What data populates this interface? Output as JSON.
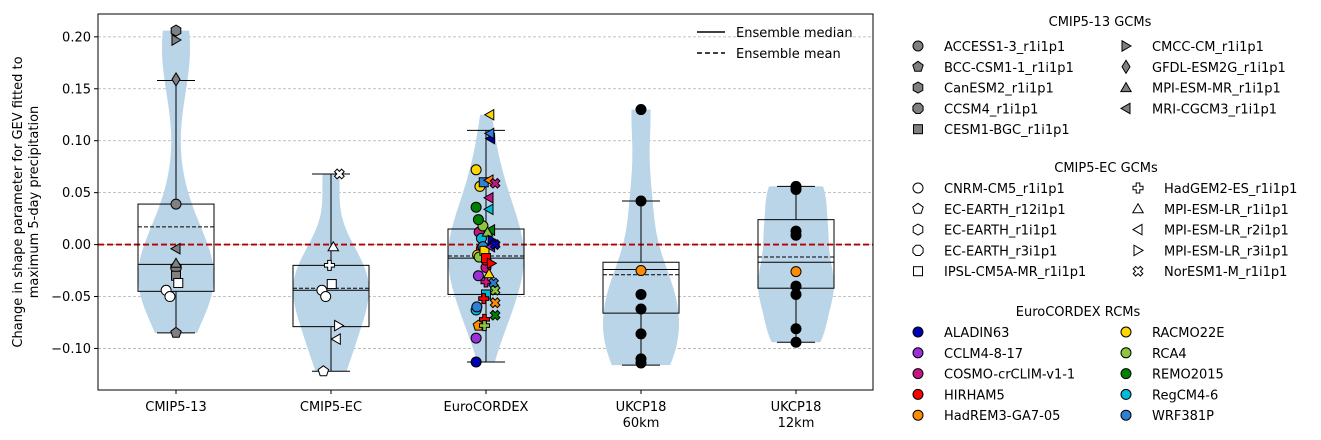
{
  "chart_data": {
    "type": "violin",
    "ylabel_line1": "Change in shape parameter for GEV fitted to",
    "ylabel_line2": "maximum 5-day precipitation",
    "ylim": [
      -0.14,
      0.222
    ],
    "yticks": [
      -0.1,
      -0.05,
      0.0,
      0.05,
      0.1,
      0.15,
      0.2
    ],
    "ytick_labels": [
      "−0.10",
      "−0.05",
      "0.00",
      "0.05",
      "0.10",
      "0.15",
      "0.20"
    ],
    "grid": "y",
    "zero_line_color": "#b30000",
    "violin_color": "#bad4e8",
    "categories": [
      {
        "label": "CMIP5-13",
        "label2": "",
        "box": {
          "q1": -0.045,
          "median": -0.019,
          "mean": 0.017,
          "q3": 0.039,
          "whisker_low": -0.085,
          "whisker_high": 0.158
        }
      },
      {
        "label": "CMIP5-EC",
        "label2": "",
        "box": {
          "q1": -0.079,
          "median": -0.044,
          "mean": -0.042,
          "q3": -0.02,
          "whisker_low": -0.122,
          "whisker_high": 0.068
        }
      },
      {
        "label": "EuroCORDEX",
        "label2": "",
        "box": {
          "q1": -0.048,
          "median": -0.013,
          "mean": -0.011,
          "q3": 0.015,
          "whisker_low": -0.113,
          "whisker_high": 0.11
        }
      },
      {
        "label": "UKCP18",
        "label2": "60km",
        "box": {
          "q1": -0.066,
          "median": -0.024,
          "mean": -0.029,
          "q3": -0.017,
          "whisker_low": -0.116,
          "whisker_high": 0.042
        }
      },
      {
        "label": "UKCP18",
        "label2": "12km",
        "box": {
          "q1": -0.042,
          "median": -0.017,
          "mean": -0.012,
          "q3": 0.024,
          "whisker_low": -0.094,
          "whisker_high": 0.056
        }
      }
    ],
    "series": [
      {
        "group": 0,
        "marker": "circle",
        "fill": "#808080",
        "points": [
          [
            0,
            0.039
          ]
        ]
      },
      {
        "group": 0,
        "marker": "pentagon",
        "fill": "#808080",
        "points": [
          [
            0,
            -0.085
          ]
        ]
      },
      {
        "group": 0,
        "marker": "hexagon",
        "fill": "#808080",
        "points": [
          [
            0,
            0.206
          ]
        ]
      },
      {
        "group": 0,
        "marker": "octagon",
        "fill": "#808080",
        "points": [
          [
            0,
            -0.022
          ]
        ]
      },
      {
        "group": 0,
        "marker": "square",
        "fill": "#808080",
        "points": [
          [
            0,
            -0.03
          ]
        ]
      },
      {
        "group": 0,
        "marker": "tri-right",
        "fill": "#808080",
        "points": [
          [
            0,
            0.197
          ]
        ]
      },
      {
        "group": 0,
        "marker": "diamond",
        "fill": "#808080",
        "points": [
          [
            0,
            0.159
          ]
        ]
      },
      {
        "group": 0,
        "marker": "tri-up",
        "fill": "#808080",
        "points": [
          [
            0,
            -0.018
          ]
        ]
      },
      {
        "group": 0,
        "marker": "tri-left",
        "fill": "#808080",
        "points": [
          [
            0,
            -0.004
          ]
        ]
      },
      {
        "group": 0,
        "marker": "circle",
        "fill": "#ffffff",
        "points": [
          [
            -0.13,
            -0.044
          ],
          [
            -0.08,
            -0.05
          ]
        ]
      },
      {
        "group": 0,
        "marker": "square",
        "fill": "#ffffff",
        "points": [
          [
            0.03,
            -0.037
          ]
        ]
      },
      {
        "group": 1,
        "marker": "circle",
        "fill": "#ffffff",
        "points": [
          [
            -0.12,
            -0.044
          ],
          [
            -0.07,
            -0.05
          ]
        ]
      },
      {
        "group": 1,
        "marker": "pentagon",
        "fill": "#ffffff",
        "points": [
          [
            -0.1,
            -0.122
          ]
        ]
      },
      {
        "group": 1,
        "marker": "plus",
        "fill": "#ffffff",
        "points": [
          [
            -0.02,
            -0.02
          ]
        ]
      },
      {
        "group": 1,
        "marker": "tri-up",
        "fill": "#ffffff",
        "points": [
          [
            0.03,
            -0.002
          ]
        ]
      },
      {
        "group": 1,
        "marker": "square",
        "fill": "#ffffff",
        "points": [
          [
            0.01,
            -0.038
          ]
        ]
      },
      {
        "group": 1,
        "marker": "tri-left",
        "fill": "#ffffff",
        "points": [
          [
            0.07,
            -0.091
          ]
        ]
      },
      {
        "group": 1,
        "marker": "tri-right",
        "fill": "#ffffff",
        "points": [
          [
            0.1,
            -0.078
          ]
        ]
      },
      {
        "group": 1,
        "marker": "x-filled",
        "fill": "#ffffff",
        "points": [
          [
            0.11,
            0.068
          ]
        ]
      },
      {
        "group": 2,
        "marker": "circle",
        "fill": "#0000b3",
        "points": [
          [
            -0.13,
            -0.113
          ]
        ]
      },
      {
        "group": 2,
        "marker": "circle",
        "fill": "#9b30d9",
        "points": [
          [
            -0.13,
            -0.09
          ],
          [
            -0.1,
            -0.03
          ]
        ]
      },
      {
        "group": 2,
        "marker": "circle",
        "fill": "#c71585",
        "points": [
          [
            -0.09,
            0.012
          ],
          [
            0.0,
            -0.022
          ]
        ]
      },
      {
        "group": 2,
        "marker": "circle",
        "fill": "#ff0000",
        "points": [
          [
            -0.06,
            -0.004
          ],
          [
            0.0,
            -0.015
          ]
        ]
      },
      {
        "group": 2,
        "marker": "pentagon",
        "fill": "#ff8c00",
        "points": [
          [
            -0.1,
            -0.078
          ]
        ]
      },
      {
        "group": 2,
        "marker": "circle",
        "fill": "#ffd700",
        "points": [
          [
            -0.13,
            0.072
          ],
          [
            -0.08,
            0.056
          ],
          [
            -0.11,
            -0.01
          ]
        ]
      },
      {
        "group": 2,
        "marker": "circle",
        "fill": "#8cc63f",
        "points": [
          [
            -0.09,
            -0.012
          ],
          [
            -0.04,
            0.018
          ]
        ]
      },
      {
        "group": 2,
        "marker": "circle",
        "fill": "#008000",
        "points": [
          [
            -0.13,
            0.036
          ],
          [
            -0.1,
            0.024
          ]
        ]
      },
      {
        "group": 2,
        "marker": "circle",
        "fill": "#00bcd4",
        "points": [
          [
            -0.13,
            -0.063
          ],
          [
            -0.06,
            0.006
          ]
        ]
      },
      {
        "group": 2,
        "marker": "circle",
        "fill": "#2f7fd6",
        "points": [
          [
            -0.12,
            -0.06
          ],
          [
            -0.04,
            -0.002
          ]
        ]
      },
      {
        "group": 2,
        "marker": "square",
        "fill": "#ffd700",
        "points": [
          [
            -0.02,
            -0.006
          ]
        ]
      },
      {
        "group": 2,
        "marker": "square",
        "fill": "#ff0000",
        "points": [
          [
            0.0,
            -0.013
          ]
        ]
      },
      {
        "group": 2,
        "marker": "square",
        "fill": "#2f7fd6",
        "points": [
          [
            -0.03,
            0.06
          ]
        ]
      },
      {
        "group": 2,
        "marker": "square",
        "fill": "#00bcd4",
        "points": [
          [
            0.0,
            -0.048
          ]
        ]
      },
      {
        "group": 2,
        "marker": "plus",
        "fill": "#ff0000",
        "points": [
          [
            -0.03,
            -0.052
          ],
          [
            -0.02,
            -0.072
          ]
        ]
      },
      {
        "group": 2,
        "marker": "plus",
        "fill": "#8cc63f",
        "points": [
          [
            -0.02,
            -0.078
          ]
        ]
      },
      {
        "group": 2,
        "marker": "plus",
        "fill": "#c71585",
        "points": [
          [
            0.0,
            -0.036
          ]
        ]
      },
      {
        "group": 2,
        "marker": "tri-left",
        "fill": "#ffd700",
        "points": [
          [
            0.05,
            0.125
          ]
        ]
      },
      {
        "group": 2,
        "marker": "tri-left",
        "fill": "#0000b3",
        "points": [
          [
            0.06,
            0.102
          ]
        ]
      },
      {
        "group": 2,
        "marker": "tri-left",
        "fill": "#2f7fd6",
        "points": [
          [
            0.05,
            0.107
          ]
        ]
      },
      {
        "group": 2,
        "marker": "tri-left",
        "fill": "#ff8c00",
        "points": [
          [
            0.04,
            0.062
          ]
        ]
      },
      {
        "group": 2,
        "marker": "tri-left",
        "fill": "#c71585",
        "points": [
          [
            0.04,
            0.045
          ]
        ]
      },
      {
        "group": 2,
        "marker": "tri-left",
        "fill": "#00bcd4",
        "points": [
          [
            0.04,
            0.034
          ]
        ]
      },
      {
        "group": 2,
        "marker": "tri-left",
        "fill": "#9b30d9",
        "points": [
          [
            0.06,
            -0.002
          ]
        ]
      },
      {
        "group": 2,
        "marker": "tri-left",
        "fill": "#008000",
        "points": [
          [
            0.06,
            0.014
          ]
        ]
      },
      {
        "group": 2,
        "marker": "tri-up",
        "fill": "#ffd700",
        "points": [
          [
            0.04,
            -0.028
          ]
        ]
      },
      {
        "group": 2,
        "marker": "tri-up",
        "fill": "#8cc63f",
        "points": [
          [
            0.02,
            0.012
          ]
        ]
      },
      {
        "group": 2,
        "marker": "tri-right",
        "fill": "#0000b3",
        "points": [
          [
            0.08,
            0.004
          ]
        ]
      },
      {
        "group": 2,
        "marker": "tri-right",
        "fill": "#ff0000",
        "points": [
          [
            0.07,
            -0.018
          ]
        ]
      },
      {
        "group": 2,
        "marker": "x-filled",
        "fill": "#c71585",
        "points": [
          [
            0.12,
            0.059
          ]
        ]
      },
      {
        "group": 2,
        "marker": "x-filled",
        "fill": "#0000b3",
        "points": [
          [
            0.12,
            0.0
          ]
        ]
      },
      {
        "group": 2,
        "marker": "x-filled",
        "fill": "#2f7fd6",
        "points": [
          [
            0.1,
            -0.037
          ]
        ]
      },
      {
        "group": 2,
        "marker": "x-filled",
        "fill": "#8cc63f",
        "points": [
          [
            0.12,
            -0.044
          ]
        ]
      },
      {
        "group": 2,
        "marker": "x-filled",
        "fill": "#ff8c00",
        "points": [
          [
            0.12,
            -0.056
          ]
        ]
      },
      {
        "group": 2,
        "marker": "x-filled",
        "fill": "#008000",
        "points": [
          [
            0.12,
            -0.068
          ]
        ]
      },
      {
        "group": 3,
        "marker": "circle",
        "fill": "#000000",
        "points": [
          [
            0,
            0.13
          ],
          [
            0,
            0.042
          ],
          [
            0,
            -0.048
          ],
          [
            0,
            -0.062
          ],
          [
            0,
            -0.086
          ],
          [
            0,
            -0.11
          ],
          [
            0,
            -0.114
          ]
        ]
      },
      {
        "group": 3,
        "marker": "circle",
        "fill": "#ff8c00",
        "points": [
          [
            0,
            -0.025
          ]
        ]
      },
      {
        "group": 4,
        "marker": "circle",
        "fill": "#000000",
        "points": [
          [
            0,
            0.056
          ],
          [
            0,
            0.053
          ],
          [
            0,
            0.013
          ],
          [
            0,
            0.009
          ],
          [
            0,
            -0.04
          ],
          [
            0,
            -0.048
          ],
          [
            0,
            -0.081
          ],
          [
            0,
            -0.094
          ]
        ]
      },
      {
        "group": 4,
        "marker": "circle",
        "fill": "#ff8c00",
        "points": [
          [
            0,
            -0.026
          ]
        ]
      }
    ],
    "inset_legend": [
      {
        "label": "Ensemble median",
        "style": "solid"
      },
      {
        "label": "Ensemble mean",
        "style": "dashed"
      }
    ],
    "legend_groups": [
      {
        "title": "CMIP5-13 GCMs",
        "fill": "#808080",
        "items": [
          {
            "label": "ACCESS1-3_r1i1p1",
            "marker": "circle"
          },
          {
            "label": "BCC-CSM1-1_r1i1p1",
            "marker": "pentagon"
          },
          {
            "label": "CanESM2_r1i1p1",
            "marker": "hexagon"
          },
          {
            "label": "CCSM4_r1i1p1",
            "marker": "octagon"
          },
          {
            "label": "CESM1-BGC_r1i1p1",
            "marker": "square"
          },
          {
            "label": "CMCC-CM_r1i1p1",
            "marker": "tri-right"
          },
          {
            "label": "GFDL-ESM2G_r1i1p1",
            "marker": "diamond"
          },
          {
            "label": "MPI-ESM-MR_r1i1p1",
            "marker": "tri-up"
          },
          {
            "label": "MRI-CGCM3_r1i1p1",
            "marker": "tri-left"
          }
        ]
      },
      {
        "title": "CMIP5-EC GCMs",
        "fill": "#ffffff",
        "items": [
          {
            "label": "CNRM-CM5_r1i1p1",
            "marker": "circle"
          },
          {
            "label": "EC-EARTH_r12i1p1",
            "marker": "pentagon"
          },
          {
            "label": "EC-EARTH_r1i1p1",
            "marker": "hexagon"
          },
          {
            "label": "EC-EARTH_r3i1p1",
            "marker": "octagon"
          },
          {
            "label": "IPSL-CM5A-MR_r1i1p1",
            "marker": "square"
          },
          {
            "label": "HadGEM2-ES_r1i1p1",
            "marker": "plus"
          },
          {
            "label": "MPI-ESM-LR_r1i1p1",
            "marker": "tri-up"
          },
          {
            "label": "MPI-ESM-LR_r2i1p1",
            "marker": "tri-left"
          },
          {
            "label": "MPI-ESM-LR_r3i1p1",
            "marker": "tri-right"
          },
          {
            "label": "NorESM1-M_r1i1p1",
            "marker": "x-filled"
          }
        ]
      },
      {
        "title": "EuroCORDEX RCMs",
        "fill": "",
        "items": [
          {
            "label": "ALADIN63",
            "marker": "circle",
            "fill": "#0000b3"
          },
          {
            "label": "CCLM4-8-17",
            "marker": "circle",
            "fill": "#9b30d9"
          },
          {
            "label": "COSMO-crCLIM-v1-1",
            "marker": "circle",
            "fill": "#c71585"
          },
          {
            "label": "HIRHAM5",
            "marker": "circle",
            "fill": "#ff0000"
          },
          {
            "label": "HadREM3-GA7-05",
            "marker": "circle",
            "fill": "#ff8c00"
          },
          {
            "label": "RACMO22E",
            "marker": "circle",
            "fill": "#ffd700"
          },
          {
            "label": "RCA4",
            "marker": "circle",
            "fill": "#8cc63f"
          },
          {
            "label": "REMO2015",
            "marker": "circle",
            "fill": "#008000"
          },
          {
            "label": "RegCM4-6",
            "marker": "circle",
            "fill": "#00bcd4"
          },
          {
            "label": "WRF381P",
            "marker": "circle",
            "fill": "#2f7fd6"
          }
        ]
      }
    ]
  }
}
